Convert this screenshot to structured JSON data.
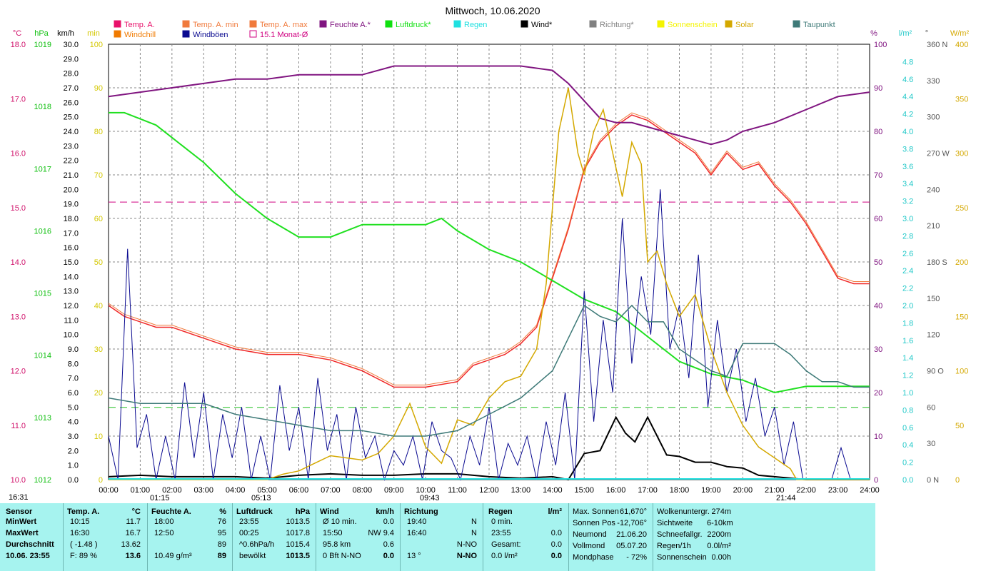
{
  "title": "Mittwoch, 10.06.2020",
  "legend": [
    {
      "label": "Temp. A.",
      "color": "#e8106a"
    },
    {
      "label": "Temp. A. min",
      "color": "#f07a3c"
    },
    {
      "label": "Temp. A. max",
      "color": "#f07a3c"
    },
    {
      "label": "Feuchte A.*",
      "color": "#801580"
    },
    {
      "label": "Luftdruck*",
      "color": "#10e010"
    },
    {
      "label": "Regen",
      "color": "#20e0e0"
    },
    {
      "label": "Wind*",
      "color": "#000000"
    },
    {
      "label": "Richtung*",
      "color": "#808080"
    },
    {
      "label": "Sonnenschein",
      "color": "#f4f400"
    },
    {
      "label": "Solar",
      "color": "#d4a800"
    },
    {
      "label": "Taupunkt",
      "color": "#3e7a78"
    },
    {
      "label": "Windchill",
      "color": "#f07a00"
    },
    {
      "label": "Windböen",
      "color": "#0a0a90"
    },
    {
      "label": "15.1 Monat-Ø",
      "color": "#d00080"
    }
  ],
  "axes": {
    "temp_unit": "°C",
    "temp_ticks": [
      "18.0",
      "17.0",
      "16.0",
      "15.0",
      "14.0",
      "13.0",
      "12.0",
      "11.0",
      "10.0"
    ],
    "hpa_unit": "hPa",
    "hpa_ticks": [
      "1019",
      "1018",
      "1017",
      "1016",
      "1015",
      "1014",
      "1013",
      "1012"
    ],
    "kmh_unit": "km/h",
    "kmh_ticks": [
      "30.0",
      "29.0",
      "28.0",
      "27.0",
      "26.0",
      "25.0",
      "24.0",
      "23.0",
      "22.0",
      "21.0",
      "20.0",
      "19.0",
      "18.0",
      "17.0",
      "16.0",
      "15.0",
      "14.0",
      "13.0",
      "12.0",
      "11.0",
      "10.0",
      "9.0",
      "8.0",
      "7.0",
      "6.0",
      "5.0",
      "4.0",
      "3.0",
      "2.0",
      "1.0",
      "0.0"
    ],
    "min_unit": "min",
    "min_ticks": [
      "100",
      "90",
      "80",
      "70",
      "60",
      "50",
      "40",
      "30",
      "20",
      "10",
      "0"
    ],
    "pct_unit": "%",
    "pct_ticks": [
      "100",
      "90",
      "80",
      "70",
      "60",
      "50",
      "40",
      "30",
      "20",
      "10",
      "0"
    ],
    "rain_unit": "l/m²",
    "rain_ticks": [
      "4.8",
      "4.6",
      "4.4",
      "4.2",
      "4.0",
      "3.8",
      "3.6",
      "3.4",
      "3.2",
      "3.0",
      "2.8",
      "2.6",
      "2.4",
      "2.2",
      "2.0",
      "1.8",
      "1.6",
      "1.4",
      "1.2",
      "1.0",
      "0.8",
      "0.6",
      "0.4",
      "0.2",
      "0.0"
    ],
    "dir_unit": "°",
    "dir_ticks": [
      "360 N",
      "330",
      "300",
      "270 W",
      "240",
      "210",
      "180 S",
      "150",
      "120",
      "90  O",
      "60",
      "30",
      "0  N"
    ],
    "wm2_unit": "W/m²",
    "wm2_ticks": [
      "400",
      "350",
      "300",
      "250",
      "200",
      "150",
      "100",
      "50",
      "0"
    ],
    "x_ticks": [
      "00:00",
      "01:00",
      "02:00",
      "03:00",
      "04:00",
      "05:00",
      "06:00",
      "07:00",
      "08:00",
      "09:00",
      "10:00",
      "11:00",
      "12:00",
      "13:00",
      "14:00",
      "15:00",
      "16:00",
      "17:00",
      "18:00",
      "19:00",
      "20:00",
      "21:00",
      "22:00",
      "23:00",
      "24:00"
    ]
  },
  "markers": {
    "left_time": "16:31",
    "sunrise": "05:13",
    "moonset": "01:15",
    "noon": "09:43",
    "sunset": "21:44"
  },
  "chart_data": {
    "type": "line",
    "x_range": [
      0,
      24
    ],
    "series": [
      {
        "name": "Temp. A.",
        "unit": "°C",
        "x": [
          0,
          0.5,
          1,
          1.5,
          2,
          3,
          4,
          5,
          6,
          7,
          8,
          9,
          10,
          11,
          11.5,
          12,
          12.5,
          13,
          13.5,
          14,
          14.5,
          15,
          15.5,
          16,
          16.5,
          17,
          17.5,
          18,
          18.5,
          19,
          19.5,
          20,
          20.5,
          21,
          21.5,
          22,
          22.5,
          23,
          23.5,
          24
        ],
        "y": [
          13.2,
          13.0,
          12.9,
          12.8,
          12.8,
          12.6,
          12.4,
          12.3,
          12.3,
          12.2,
          12.0,
          11.7,
          11.7,
          11.8,
          12.1,
          12.2,
          12.3,
          12.5,
          12.8,
          13.7,
          14.6,
          15.7,
          16.2,
          16.5,
          16.7,
          16.6,
          16.4,
          16.2,
          16.0,
          15.6,
          16.0,
          15.7,
          15.8,
          15.4,
          15.1,
          14.7,
          14.2,
          13.7,
          13.6,
          13.6
        ]
      },
      {
        "name": "Feuchte A.",
        "unit": "%",
        "x": [
          0,
          1,
          2,
          3,
          4,
          5,
          6,
          7,
          8,
          9,
          10,
          11,
          12,
          13,
          14,
          14.5,
          15,
          15.5,
          16,
          16.5,
          17,
          17.5,
          18,
          18.5,
          19,
          19.5,
          20,
          21,
          22,
          23,
          24
        ],
        "y": [
          88,
          89,
          90,
          91,
          92,
          92,
          93,
          93,
          93,
          95,
          95,
          95,
          95,
          95,
          94,
          91,
          87,
          83,
          82,
          82,
          81,
          80,
          79,
          78,
          77,
          78,
          80,
          82,
          85,
          88,
          89
        ]
      },
      {
        "name": "Luftdruck",
        "unit": "hPa",
        "x": [
          0,
          0.5,
          1,
          1.5,
          2,
          3,
          4,
          5,
          6,
          7,
          8,
          9,
          10,
          10.5,
          11,
          12,
          13,
          14,
          15,
          16,
          17,
          18,
          19,
          20,
          21,
          22,
          23,
          24
        ],
        "y": [
          1017.9,
          1017.9,
          1017.8,
          1017.7,
          1017.5,
          1017.1,
          1016.6,
          1016.2,
          1015.9,
          1015.9,
          1016.1,
          1016.1,
          1016.1,
          1016.2,
          1016.0,
          1015.7,
          1015.5,
          1015.2,
          1014.9,
          1014.7,
          1014.3,
          1013.9,
          1013.7,
          1013.6,
          1013.4,
          1013.5,
          1013.5,
          1013.5
        ]
      },
      {
        "name": "Wind",
        "unit": "km/h",
        "x": [
          0,
          1,
          2,
          3,
          4,
          5,
          6,
          7,
          8,
          9,
          10,
          11,
          12,
          13,
          14,
          14.5,
          15,
          15.5,
          16,
          16.3,
          16.6,
          17,
          17.3,
          17.6,
          18,
          18.5,
          19,
          19.5,
          20,
          20.5,
          21,
          22,
          23,
          24
        ],
        "y": [
          0.2,
          0.3,
          0.2,
          0.2,
          0.2,
          0.1,
          0.3,
          0.4,
          0.3,
          0.3,
          0.4,
          0.4,
          0.2,
          0.1,
          0.2,
          0.0,
          1.8,
          2.0,
          4.3,
          3.2,
          2.6,
          4.3,
          3.0,
          1.7,
          1.6,
          1.2,
          1.2,
          0.9,
          0.8,
          0.3,
          0.2,
          0.0,
          0.0,
          0.0
        ]
      },
      {
        "name": "Windböen",
        "unit": "km/h",
        "x": [
          0,
          0.3,
          0.6,
          0.9,
          1.2,
          1.5,
          1.8,
          2.1,
          2.4,
          2.7,
          3,
          3.3,
          3.6,
          3.9,
          4.2,
          4.5,
          4.8,
          5.1,
          5.4,
          5.7,
          6,
          6.3,
          6.6,
          6.9,
          7.2,
          7.5,
          7.8,
          8.1,
          8.4,
          8.7,
          9,
          9.3,
          9.6,
          9.9,
          10.2,
          10.5,
          10.8,
          11.1,
          11.4,
          11.7,
          12,
          12.3,
          12.6,
          12.9,
          13.2,
          13.5,
          13.8,
          14.1,
          14.4,
          14.7,
          15,
          15.3,
          15.6,
          15.9,
          16.2,
          16.5,
          16.8,
          17.1,
          17.4,
          17.7,
          18,
          18.3,
          18.6,
          18.9,
          19.2,
          19.5,
          19.8,
          20.1,
          20.4,
          20.7,
          21,
          21.3,
          21.6,
          21.9,
          22.2,
          22.5,
          22.8,
          23.1,
          23.4,
          23.7,
          24
        ],
        "y": [
          3.0,
          0.0,
          15.9,
          2.2,
          4.5,
          0.0,
          3.0,
          0.0,
          6.7,
          1.5,
          6.0,
          0.0,
          4.5,
          1.5,
          5.0,
          0.0,
          3.0,
          0.0,
          6.5,
          2.0,
          5.0,
          0.0,
          7.0,
          2.0,
          4.5,
          0.0,
          5.0,
          1.5,
          3.0,
          0.0,
          2.0,
          1.0,
          3.0,
          0.0,
          4.0,
          2.0,
          1.5,
          0.0,
          3.0,
          1.0,
          5.0,
          0.0,
          2.5,
          1.0,
          3.0,
          0.0,
          4.0,
          1.0,
          6.0,
          0.0,
          13.0,
          4.0,
          11.0,
          6.0,
          18.0,
          8.0,
          14.0,
          10.0,
          20.0,
          9.0,
          12.0,
          7.0,
          15.5,
          5.0,
          11.0,
          6.0,
          9.0,
          4.0,
          7.0,
          3.0,
          5.0,
          1.0,
          4.0,
          0.0,
          0.0,
          0.0,
          0.0,
          2.2,
          0.0,
          0.0,
          0.0
        ]
      },
      {
        "name": "Solar",
        "unit": "W/m²",
        "x": [
          0,
          4.5,
          5,
          5.5,
          6,
          6.5,
          7,
          7.5,
          8,
          8.5,
          9,
          9.5,
          10,
          10.5,
          11,
          11.5,
          12,
          12.5,
          13,
          13.5,
          13.8,
          14,
          14.2,
          14.5,
          14.8,
          15,
          15.3,
          15.6,
          15.9,
          16.2,
          16.5,
          16.8,
          17,
          17.3,
          17.6,
          18,
          18.5,
          19,
          19.5,
          20,
          20.5,
          21,
          21.5,
          21.7,
          22,
          24
        ],
        "y": [
          0,
          0,
          0,
          5,
          8,
          15,
          22,
          20,
          18,
          24,
          40,
          70,
          30,
          15,
          55,
          50,
          75,
          90,
          95,
          120,
          180,
          250,
          320,
          360,
          300,
          280,
          320,
          340,
          300,
          260,
          310,
          290,
          200,
          210,
          180,
          150,
          170,
          120,
          80,
          50,
          30,
          20,
          10,
          0,
          0,
          0
        ]
      },
      {
        "name": "Taupunkt",
        "unit": "°C",
        "x": [
          0,
          1,
          2,
          3,
          4,
          5,
          6,
          7,
          8,
          9,
          10,
          11,
          12,
          13,
          14,
          14.5,
          15,
          15.5,
          16,
          16.5,
          17,
          17.5,
          18,
          18.5,
          19,
          19.5,
          20,
          20.5,
          21,
          21.5,
          22,
          22.5,
          23,
          23.5,
          24
        ],
        "y": [
          11.5,
          11.4,
          11.4,
          11.4,
          11.2,
          11.1,
          11.0,
          10.9,
          10.9,
          10.8,
          10.8,
          10.9,
          11.2,
          11.5,
          12.0,
          12.6,
          13.2,
          13.0,
          12.9,
          13.2,
          12.9,
          12.9,
          12.4,
          12.2,
          12.0,
          11.9,
          12.5,
          12.5,
          12.5,
          12.3,
          12.0,
          11.8,
          11.8,
          11.7,
          11.7
        ]
      },
      {
        "name": "15.1 Monat-Ø",
        "unit": "°C",
        "x": [
          0,
          24
        ],
        "y": [
          15.1,
          15.1
        ]
      }
    ],
    "ylim_temp": [
      10,
      18
    ],
    "ylim_pct": [
      0,
      100
    ],
    "ylim_hpa": [
      1012,
      1019
    ],
    "ylim_kmh": [
      0,
      30
    ],
    "ylim_wm2": [
      0,
      400
    ]
  },
  "stats": {
    "sensor": {
      "h": "Sensor",
      "rows": [
        "MinWert",
        "MaxWert",
        "Durchschnitt",
        "10.06. 23:55"
      ]
    },
    "temp": {
      "h": "Temp. A.",
      "u": "°C",
      "rows": [
        [
          "10:15",
          "11.7"
        ],
        [
          "16:30",
          "16.7"
        ],
        [
          "( -1.48 )",
          "13.62"
        ],
        [
          "F: 89 %",
          "13.6"
        ]
      ]
    },
    "feuchte": {
      "h": "Feuchte A.",
      "u": "%",
      "rows": [
        [
          "18:00",
          "76"
        ],
        [
          "12:50",
          "95"
        ],
        [
          "",
          "89"
        ],
        [
          "10.49 g/m³",
          "89"
        ]
      ]
    },
    "luftdruck": {
      "h": "Luftdruck",
      "u": "hPa",
      "rows": [
        [
          "23:55",
          "1013.5"
        ],
        [
          "00:25",
          "1017.8"
        ],
        [
          "^0.6hPa/h",
          "1015.4"
        ],
        [
          "bewölkt",
          "1013.5"
        ]
      ]
    },
    "wind": {
      "h": "Wind",
      "u": "km/h",
      "rows": [
        [
          "Ø 10 min.",
          "0.0"
        ],
        [
          "15:50",
          "NW 9.4"
        ],
        [
          "95.8 km",
          "0.6"
        ],
        [
          "0 Bft N-NO",
          "0.0"
        ]
      ]
    },
    "richtung": {
      "h": "Richtung",
      "rows": [
        [
          "19:40",
          "N"
        ],
        [
          "16:40",
          "N"
        ],
        [
          "",
          "N-NO"
        ],
        [
          "13 °",
          "N-NO"
        ]
      ]
    },
    "regen": {
      "h": "Regen",
      "u": "l/m²",
      "rows": [
        [
          "0 min.",
          ""
        ],
        [
          "23:55",
          "0.0"
        ],
        [
          "Gesamt:",
          "0.0"
        ],
        [
          "0.0 l/m²",
          "0.0"
        ]
      ]
    },
    "sonne": [
      [
        "Max. Sonnen",
        "61,670°"
      ],
      [
        "Sonnen Pos",
        "-12,706°"
      ],
      [
        "Neumond",
        "21.06.20"
      ],
      [
        "Vollmond",
        "05.07.20"
      ],
      [
        "Mondphase",
        "- 72%"
      ]
    ],
    "wolken": [
      [
        "Wolkenuntergr.",
        "274m"
      ],
      [
        "Sichtweite",
        "6-10km"
      ],
      [
        "Schneefallgr.",
        "2200m"
      ],
      [
        "Regen/1h",
        "0.0l/m²"
      ],
      [
        "Sonnenschein",
        "0.00h"
      ]
    ]
  }
}
